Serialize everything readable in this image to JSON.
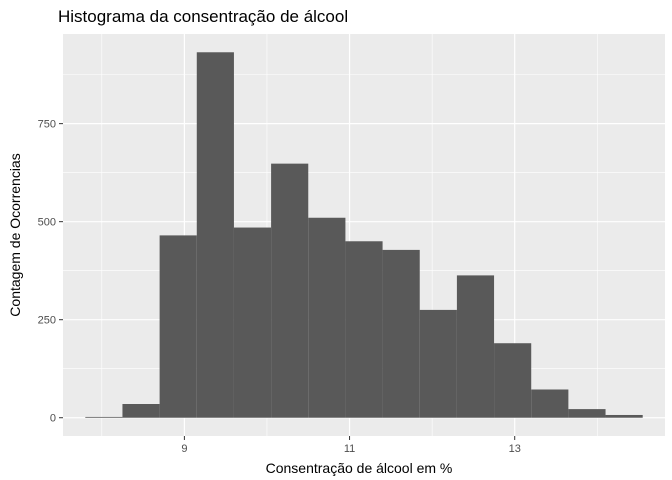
{
  "chart_data": {
    "type": "bar",
    "title": "Histograma da consentração de álcool",
    "xlabel": "Consentração de álcool em %",
    "ylabel": "Contagem de Ocorrencias",
    "bin_width": 0.45,
    "bins": [
      {
        "start": 7.8,
        "end": 8.25,
        "count": 2
      },
      {
        "start": 8.25,
        "end": 8.7,
        "count": 35
      },
      {
        "start": 8.7,
        "end": 9.15,
        "count": 465
      },
      {
        "start": 9.15,
        "end": 9.6,
        "count": 932
      },
      {
        "start": 9.6,
        "end": 10.05,
        "count": 485
      },
      {
        "start": 10.05,
        "end": 10.5,
        "count": 648
      },
      {
        "start": 10.5,
        "end": 10.95,
        "count": 510
      },
      {
        "start": 10.95,
        "end": 11.4,
        "count": 450
      },
      {
        "start": 11.4,
        "end": 11.85,
        "count": 428
      },
      {
        "start": 11.85,
        "end": 12.3,
        "count": 275
      },
      {
        "start": 12.3,
        "end": 12.75,
        "count": 363
      },
      {
        "start": 12.75,
        "end": 13.2,
        "count": 190
      },
      {
        "start": 13.2,
        "end": 13.65,
        "count": 72
      },
      {
        "start": 13.65,
        "end": 14.1,
        "count": 22
      },
      {
        "start": 14.1,
        "end": 14.55,
        "count": 7
      }
    ],
    "xlim": [
      7.53,
      14.82
    ],
    "ylim": [
      -46.6,
      978.6
    ],
    "x_ticks": [
      9,
      11,
      13
    ],
    "x_tick_labels": [
      "9",
      "11",
      "13"
    ],
    "y_ticks": [
      0,
      250,
      500,
      750
    ],
    "y_tick_labels": [
      "0",
      "250",
      "500",
      "750"
    ],
    "grid": true,
    "colors": {
      "panel_background": "#ebebeb",
      "grid_major": "#ffffff",
      "bar_fill": "#595959",
      "tick_label": "#4d4d4d",
      "tick_mark": "#333333"
    }
  }
}
